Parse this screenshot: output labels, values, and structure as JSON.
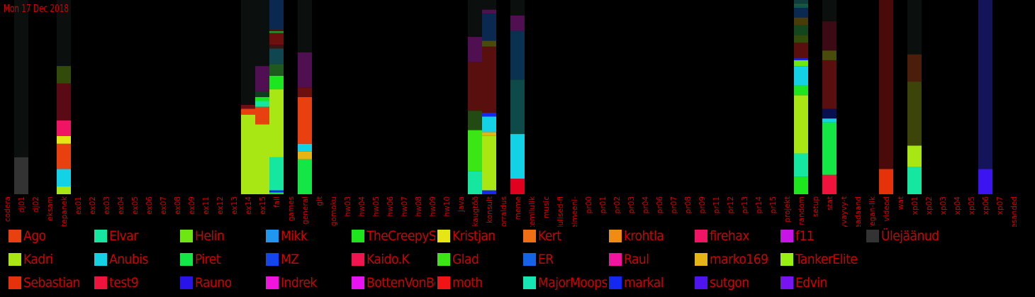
{
  "date_label": "Mon 17 Dec 2018",
  "colors": {
    "text": "#d00000",
    "background": "#000000",
    "bar_background": "#0b0f0d"
  },
  "chart_data": {
    "type": "bar",
    "stacked": true,
    "ylim": [
      0,
      100
    ],
    "categories": [
      "codera",
      "dj01",
      "dj02",
      "eksam",
      "ettepanek",
      "ex01",
      "ex02",
      "ex03",
      "ex04",
      "ex05",
      "ex06",
      "ex07",
      "ex08",
      "ex09",
      "ex11",
      "ex12",
      "ex13",
      "ex14",
      "ex15",
      "fail",
      "games",
      "general",
      "git",
      "gomoku",
      "hw03",
      "hw04",
      "hw05",
      "hw06",
      "hw07",
      "hw08",
      "hw09",
      "hw10",
      "java",
      "kaugtöö",
      "konsult",
      "korraldus",
      "meme",
      "mittemiiulik",
      "music",
      "olulised-fi",
      "pelmeeni-",
      "pr00",
      "pr01",
      "pr02",
      "pr03",
      "pr04",
      "pr06",
      "pr07",
      "pr08",
      "pr09",
      "pr11",
      "pr12",
      "pr13",
      "pr14",
      "pr15",
      "projekt",
      "random",
      "setup",
      "stat",
      "syvayvy-t",
      "teadaand",
      "vegan-lik",
      "videod",
      "wat",
      "xp01",
      "xp02",
      "xp03",
      "xp04",
      "xp05",
      "xp06",
      "xp07",
      "ülesanded"
    ],
    "users": [
      {
        "name": "Ago",
        "color": "#e8400f"
      },
      {
        "name": "Elvar",
        "color": "#15e6a0"
      },
      {
        "name": "Helin",
        "color": "#6ee611"
      },
      {
        "name": "Mikk",
        "color": "#1f96f0"
      },
      {
        "name": "TheCreepySh",
        "color": "#1ee61e"
      },
      {
        "name": "Kristjan",
        "color": "#e6e614"
      },
      {
        "name": "Kert",
        "color": "#f06e14"
      },
      {
        "name": "krohtla",
        "color": "#f08c14"
      },
      {
        "name": "firehax",
        "color": "#f01464"
      },
      {
        "name": "f11",
        "color": "#c814e6"
      },
      {
        "name": "Ülejäänud",
        "color": "#333333"
      },
      {
        "name": "Kadri",
        "color": "#a8e614"
      },
      {
        "name": "Anubis",
        "color": "#14d2e6"
      },
      {
        "name": "Piret",
        "color": "#14e646"
      },
      {
        "name": "MZ",
        "color": "#1446f0"
      },
      {
        "name": "Kaido.K",
        "color": "#f01450"
      },
      {
        "name": "Glad",
        "color": "#3ce614"
      },
      {
        "name": "ER",
        "color": "#1464e6"
      },
      {
        "name": "Raul",
        "color": "#f014a0"
      },
      {
        "name": "marko169",
        "color": "#e6b414"
      },
      {
        "name": "TankerElite",
        "color": "#96f014"
      },
      {
        "name": "Sebastian",
        "color": "#e6320a"
      },
      {
        "name": "test9",
        "color": "#f0143c"
      },
      {
        "name": "Rauno",
        "color": "#2814e6"
      },
      {
        "name": "Indrek",
        "color": "#f014dc"
      },
      {
        "name": "BottenVonBot",
        "color": "#e614f0"
      },
      {
        "name": "moth",
        "color": "#f01414"
      },
      {
        "name": "MajorMoopsy",
        "color": "#14e6b4"
      },
      {
        "name": "markal",
        "color": "#1428f0"
      },
      {
        "name": "sutgon",
        "color": "#5014f0"
      },
      {
        "name": "Edvin",
        "color": "#7814f0"
      }
    ],
    "bars": [
      {
        "category": "dj01",
        "segments": [
          {
            "color": "#333333",
            "value": 19
          }
        ]
      },
      {
        "category": "ettepanek",
        "segments": [
          {
            "color": "#a8e614",
            "value": 4
          },
          {
            "color": "#14d2e6",
            "value": 9
          },
          {
            "color": "#e8400f",
            "value": 13
          },
          {
            "color": "#e6e614",
            "value": 4
          },
          {
            "color": "#f01464",
            "value": 8
          },
          {
            "color": "#5a0a14",
            "value": 19
          },
          {
            "color": "#324a0a",
            "value": 9
          }
        ]
      },
      {
        "category": "ex14",
        "segments": [
          {
            "color": "#a8e614",
            "value": 41
          },
          {
            "color": "#e8400f",
            "value": 3
          },
          {
            "color": "#6e0f14",
            "value": 2
          }
        ]
      },
      {
        "category": "ex15",
        "segments": [
          {
            "color": "#a8e614",
            "value": 36
          },
          {
            "color": "#e8400f",
            "value": 9
          },
          {
            "color": "#15e6a0",
            "value": 3
          },
          {
            "color": "#1ee61e",
            "value": 2
          },
          {
            "color": "#0f3c1e",
            "value": 3
          },
          {
            "color": "#500f50",
            "value": 13
          }
        ]
      },
      {
        "category": "fail",
        "segments": [
          {
            "color": "#14e646",
            "value": 1
          },
          {
            "color": "#1428f0",
            "value": 1
          },
          {
            "color": "#15e6a0",
            "value": 17
          },
          {
            "color": "#a8e614",
            "value": 35
          },
          {
            "color": "#1ee61e",
            "value": 7
          },
          {
            "color": "#1e5a1e",
            "value": 6
          },
          {
            "color": "#0f4650",
            "value": 8
          },
          {
            "color": "#3c1414",
            "value": 2
          },
          {
            "color": "#6e0f0f",
            "value": 6
          },
          {
            "color": "#1e9628",
            "value": 1
          },
          {
            "color": "#5a0f0f",
            "value": 1
          },
          {
            "color": "#0a2850",
            "value": 15
          }
        ]
      },
      {
        "category": "general",
        "segments": [
          {
            "color": "#14e646",
            "value": 18
          },
          {
            "color": "#e6b414",
            "value": 4
          },
          {
            "color": "#14d2e6",
            "value": 4
          },
          {
            "color": "#e8400f",
            "value": 24
          },
          {
            "color": "#6e0f0f",
            "value": 5
          },
          {
            "color": "#500f50",
            "value": 18
          }
        ]
      },
      {
        "category": "kaugtöö",
        "segments": [
          {
            "color": "#15e6a0",
            "value": 12
          },
          {
            "color": "#3ce614",
            "value": 21
          },
          {
            "color": "#244a14",
            "value": 10
          },
          {
            "color": "#5a0f0f",
            "value": 25
          },
          {
            "color": "#500f50",
            "value": 13
          }
        ]
      },
      {
        "category": "konsult",
        "segments": [
          {
            "color": "#1428f0",
            "value": 2
          },
          {
            "color": "#a8e614",
            "value": 28
          },
          {
            "color": "#e6b414",
            "value": 2
          },
          {
            "color": "#14d2e6",
            "value": 8
          },
          {
            "color": "#1428f0",
            "value": 2
          },
          {
            "color": "#5a0f0f",
            "value": 34
          },
          {
            "color": "#4a4a0a",
            "value": 3
          },
          {
            "color": "#0a2850",
            "value": 14
          },
          {
            "color": "#500f50",
            "value": 2
          }
        ]
      },
      {
        "category": "meme",
        "segments": [
          {
            "color": "#e00020",
            "value": 8
          },
          {
            "color": "#14d2e6",
            "value": 23
          },
          {
            "color": "#0f4a4a",
            "value": 28
          },
          {
            "color": "#0a3250",
            "value": 25
          },
          {
            "color": "#500f50",
            "value": 8
          }
        ]
      },
      {
        "category": "random",
        "segments": [
          {
            "color": "#1ee61e",
            "value": 9
          },
          {
            "color": "#15e6a0",
            "value": 12
          },
          {
            "color": "#a8e614",
            "value": 30
          },
          {
            "color": "#1ee61e",
            "value": 5
          },
          {
            "color": "#14d2e6",
            "value": 10
          },
          {
            "color": "#6ee611",
            "value": 3
          },
          {
            "color": "#1428f0",
            "value": 1
          },
          {
            "color": "#5a0f0f",
            "value": 8
          },
          {
            "color": "#324a0a",
            "value": 4
          },
          {
            "color": "#14461e",
            "value": 5
          },
          {
            "color": "#4a3c0a",
            "value": 4
          },
          {
            "color": "#0a2850",
            "value": 5
          },
          {
            "color": "#0a5a50",
            "value": 1
          },
          {
            "color": "#1e5a3c",
            "value": 1
          },
          {
            "color": "#0f3c3c",
            "value": 2
          }
        ]
      },
      {
        "category": "stat",
        "segments": [
          {
            "color": "#f0143c",
            "value": 10
          },
          {
            "color": "#14e646",
            "value": 27
          },
          {
            "color": "#14d2e6",
            "value": 2
          },
          {
            "color": "#0a0f50",
            "value": 5
          },
          {
            "color": "#5a0f0f",
            "value": 25
          },
          {
            "color": "#4a4a0a",
            "value": 5
          },
          {
            "color": "#3c0a14",
            "value": 15
          }
        ]
      },
      {
        "category": "videod",
        "segments": [
          {
            "color": "#e6320a",
            "value": 13
          },
          {
            "color": "#4a0a0a",
            "value": 87
          }
        ]
      },
      {
        "category": "xp01",
        "segments": [
          {
            "color": "#15e6a0",
            "value": 14
          },
          {
            "color": "#a8e614",
            "value": 11
          },
          {
            "color": "#3c440a",
            "value": 33
          },
          {
            "color": "#4a1e0a",
            "value": 14
          }
        ]
      },
      {
        "category": "xp06",
        "segments": [
          {
            "color": "#3c14f0",
            "value": 13
          },
          {
            "color": "#14145a",
            "value": 87
          }
        ]
      }
    ]
  },
  "legend": [
    [
      "Ago",
      "Elvar",
      "Helin",
      "Mikk",
      "TheCreepySh",
      "Kristjan",
      "Kert",
      "krohtla",
      "firehax",
      "f11",
      "Ülejäänud"
    ],
    [
      "Kadri",
      "Anubis",
      "Piret",
      "MZ",
      "Kaido.K",
      "Glad",
      "ER",
      "Raul",
      "marko169",
      "TankerElite"
    ],
    [
      "Sebastian",
      "test9",
      "Rauno",
      "Indrek",
      "BottenVonBot",
      "moth",
      "MajorMoopsy",
      "markal",
      "sutgon",
      "Edvin"
    ]
  ]
}
